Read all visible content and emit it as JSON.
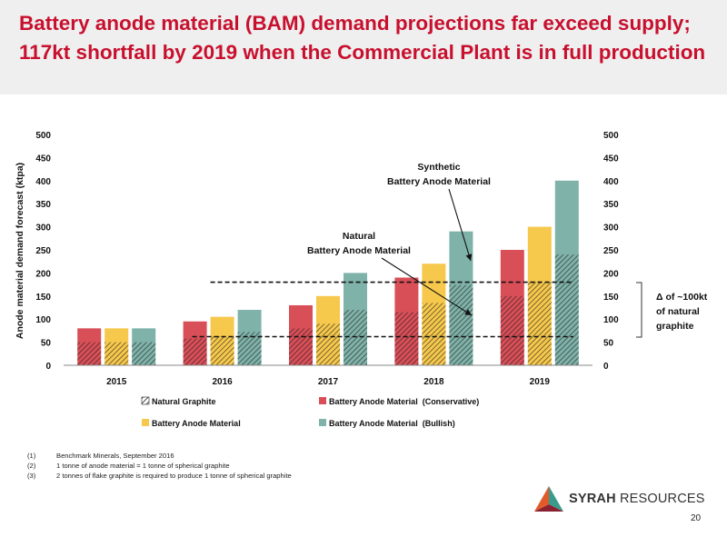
{
  "title": {
    "line1": "Battery anode material (BAM) demand projections far exceed supply;",
    "line2": "117kt shortfall by 2019 when the Commercial Plant is in full production"
  },
  "colors": {
    "title": "#c8102e",
    "conservative": "#d94f58",
    "base": "#f6c84c",
    "bullish": "#7fb2a9",
    "header_bg": "#efefef"
  },
  "chart_data": {
    "type": "bar",
    "categories": [
      "2015",
      "2016",
      "2017",
      "2018",
      "2019"
    ],
    "ylabel": "Anode material demand forecast (ktpa)",
    "ylim": [
      0,
      500
    ],
    "yticks": [
      "0",
      "50",
      "100",
      "150",
      "200",
      "250",
      "300",
      "350",
      "400",
      "450",
      "500"
    ],
    "y2ticks": [
      "0",
      "50",
      "100",
      "150",
      "200",
      "250",
      "300",
      "350",
      "400",
      "450",
      "500"
    ],
    "grid": false,
    "legend_position": "bottom",
    "series": [
      {
        "name": "Battery Anode Material  (Conservative)",
        "key": "conservative",
        "values": [
          80,
          95,
          130,
          190,
          250
        ],
        "natural_values": [
          50,
          58,
          80,
          115,
          150
        ]
      },
      {
        "name": "Battery Anode Material",
        "key": "base",
        "values": [
          80,
          105,
          150,
          220,
          300
        ],
        "natural_values": [
          50,
          63,
          90,
          135,
          180
        ]
      },
      {
        "name": "Battery Anode Material  (Bullish)",
        "key": "bullish",
        "values": [
          80,
          120,
          200,
          290,
          400
        ],
        "natural_values": [
          50,
          72,
          120,
          174,
          240
        ]
      }
    ],
    "hatch_legend": "Natural Graphite",
    "reference_lines": [
      {
        "y": 180,
        "from_category": "2016",
        "to_category": "2019",
        "style": "dashed"
      },
      {
        "y": 62,
        "from_category": "2016",
        "to_category": "2019",
        "style": "dashed"
      }
    ],
    "annotations": {
      "synthetic": [
        "Synthetic",
        "Battery Anode Material"
      ],
      "natural": [
        "Natural",
        "Battery Anode Material"
      ],
      "delta": [
        "Δ of ~100kt",
        "of natural",
        "graphite"
      ]
    }
  },
  "footnotes": [
    {
      "num": "(1)",
      "text": "Benchmark Minerals, September 2016"
    },
    {
      "num": "(2)",
      "text": "1 tonne of anode material = 1 tonne of spherical graphite"
    },
    {
      "num": "(3)",
      "text": "2 tonnes of flake graphite is required to produce 1 tonne of spherical graphite"
    }
  ],
  "logo": {
    "bold": "SYRAH",
    "rest": " RESOURCES",
    "icon": "syrah-triangle-icon"
  },
  "page_number": "20"
}
